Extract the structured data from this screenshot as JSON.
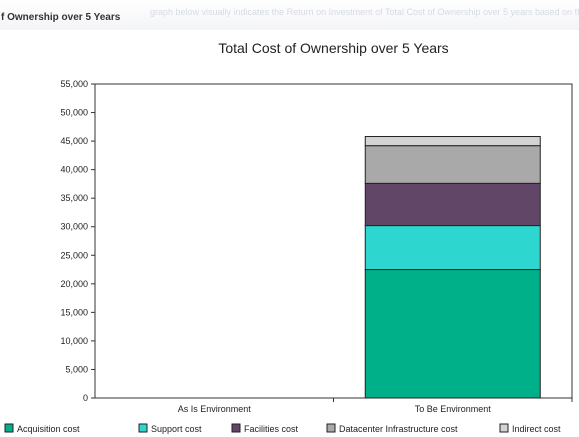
{
  "header": {
    "title": "f Ownership over 5 Years",
    "faded_text": "graph below visually indicates the Return on Investment of Total Cost of Ownership over 5 years based on the input parameters, and on the assumptions, and the impact of those parameters. The calculation..."
  },
  "chart_data": {
    "type": "bar",
    "stacked": true,
    "title": "Total Cost of Ownership over 5 Years",
    "xlabel": "",
    "ylabel": "",
    "categories": [
      "As Is Environment",
      "To Be Environment"
    ],
    "series": [
      {
        "name": "Acquisition cost",
        "color": "#00b088",
        "values": [
          0,
          22500
        ]
      },
      {
        "name": "Support cost",
        "color": "#2ed6d0",
        "values": [
          0,
          7700
        ]
      },
      {
        "name": "Facilities cost",
        "color": "#614668",
        "values": [
          0,
          7400
        ]
      },
      {
        "name": "Datacenter Infrastructure cost",
        "color": "#a9a9a9",
        "values": [
          0,
          6600
        ]
      },
      {
        "name": "Indirect cost",
        "color": "#d3d3d3",
        "values": [
          0,
          1600
        ]
      }
    ],
    "ylim": [
      0,
      55000
    ],
    "ytick_labels": [
      "0",
      "5,000",
      "10,000",
      "15,000",
      "20,000",
      "25,000",
      "30,000",
      "35,000",
      "40,000",
      "45,000",
      "50,000",
      "55,000"
    ],
    "grid": false,
    "legend_position": "bottom"
  }
}
